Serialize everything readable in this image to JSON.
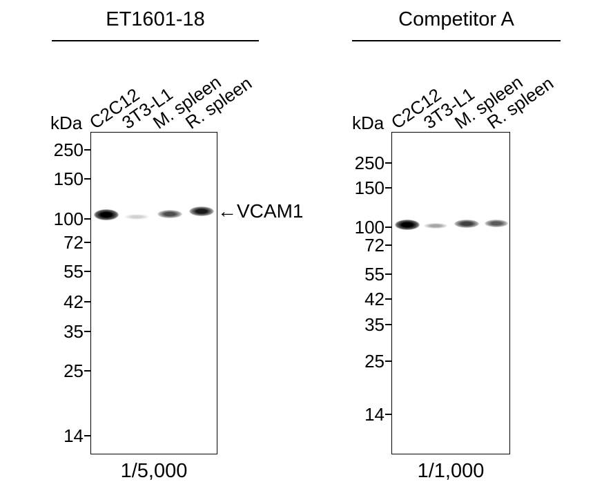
{
  "panels": [
    {
      "title": "ET1601-18",
      "kda_label": "kDa",
      "lanes": [
        "C2C12",
        "3T3-L1",
        "M. spleen",
        "R. spleen"
      ],
      "markers": [
        "250",
        "150",
        "100",
        "72",
        "55",
        "42",
        "35",
        "25",
        "14"
      ],
      "dilution": "1/5,000",
      "band_intensity": [
        1.0,
        0.15,
        0.55,
        0.75
      ]
    },
    {
      "title": "Competitor A",
      "kda_label": "kDa",
      "lanes": [
        "C2C12",
        "3T3-L1",
        "M. spleen",
        "R. spleen"
      ],
      "markers": [
        "250",
        "150",
        "100",
        "72",
        "55",
        "42",
        "35",
        "25",
        "14"
      ],
      "dilution": "1/1,000",
      "band_intensity": [
        1.0,
        0.3,
        0.6,
        0.55
      ]
    }
  ],
  "target_label": "VCAM1",
  "target_arrow": "←"
}
